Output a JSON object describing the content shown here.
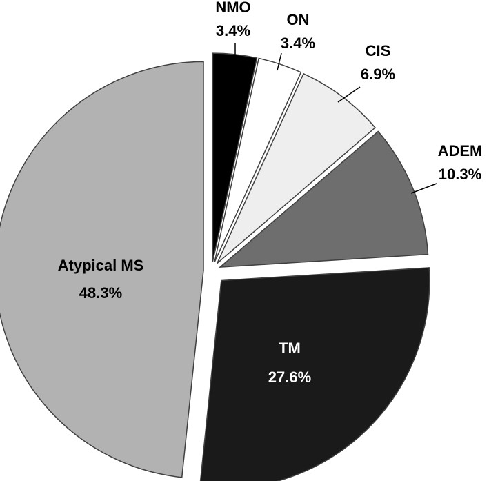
{
  "chart_data": {
    "type": "pie",
    "title": "",
    "slices": [
      {
        "label": "NMO",
        "value": 3.4,
        "value_label": "3.4%",
        "color": "#000000",
        "text_color": "#000000"
      },
      {
        "label": "ON",
        "value": 3.4,
        "value_label": "3.4%",
        "color": "#ffffff",
        "text_color": "#000000"
      },
      {
        "label": "CIS",
        "value": 6.9,
        "value_label": "6.9%",
        "color": "#eeeeee",
        "text_color": "#000000"
      },
      {
        "label": "ADEM",
        "value": 10.3,
        "value_label": "10.3%",
        "color": "#6e6e6e",
        "text_color": "#000000"
      },
      {
        "label": "TM",
        "value": 27.6,
        "value_label": "27.6%",
        "color": "#1a1a1a",
        "text_color": "#ffffff"
      },
      {
        "label": "Atypical MS",
        "value": 48.3,
        "value_label": "48.3%",
        "color": "#b2b2b2",
        "text_color": "#000000"
      }
    ],
    "exploded": true,
    "legend": "none",
    "start": "top",
    "direction": "clockwise"
  }
}
